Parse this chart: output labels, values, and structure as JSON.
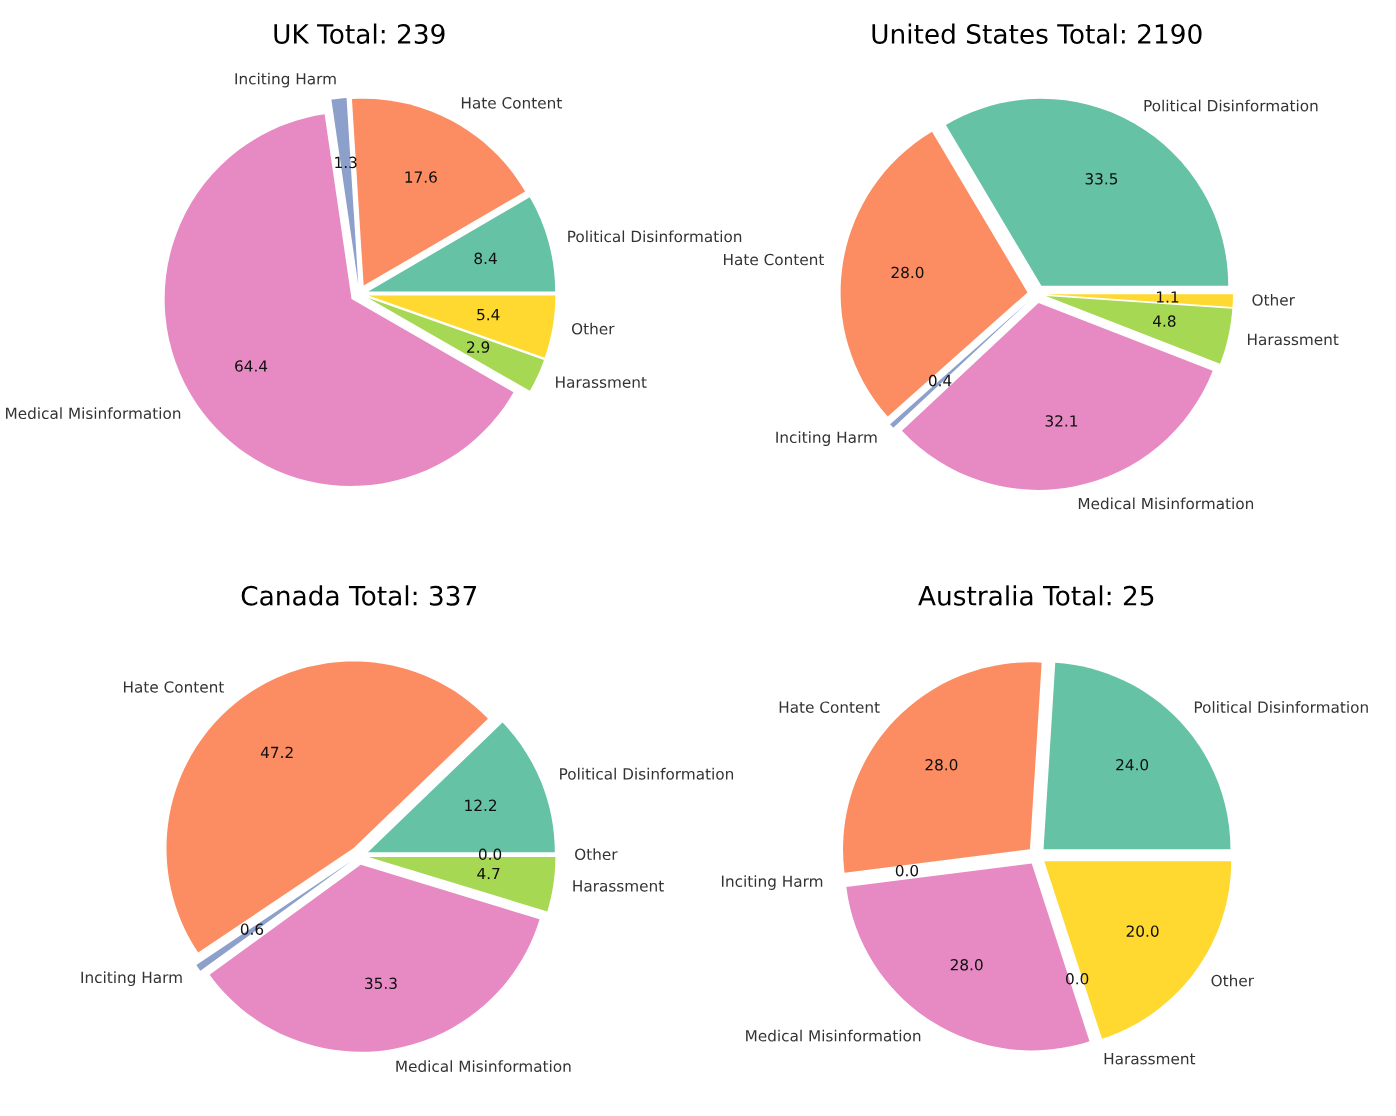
{
  "chart_data": [
    {
      "type": "pie",
      "title": "UK Total: 239",
      "categories": [
        "Political Disinformation",
        "Hate Content",
        "Inciting Harm",
        "Medical Misinformation",
        "Harassment",
        "Other"
      ],
      "values": [
        8.4,
        17.6,
        1.3,
        64.4,
        2.9,
        5.4
      ],
      "value_labels": [
        "8.4",
        "17.6",
        "1.3",
        "64.4",
        "2.9",
        "5.4"
      ],
      "colors": [
        "#66c2a5",
        "#fc8d62",
        "#8da0cb",
        "#e78ac3",
        "#a6d854",
        "#ffd92f"
      ]
    },
    {
      "type": "pie",
      "title": "United States Total: 2190",
      "categories": [
        "Political Disinformation",
        "Hate Content",
        "Inciting Harm",
        "Medical Misinformation",
        "Harassment",
        "Other"
      ],
      "values": [
        33.5,
        28.0,
        0.4,
        32.1,
        4.8,
        1.1
      ],
      "value_labels": [
        "33.5",
        "28.0",
        "0.4",
        "32.1",
        "4.8",
        "1.1"
      ],
      "colors": [
        "#66c2a5",
        "#fc8d62",
        "#8da0cb",
        "#e78ac3",
        "#a6d854",
        "#ffd92f"
      ]
    },
    {
      "type": "pie",
      "title": "Canada Total: 337",
      "categories": [
        "Political Disinformation",
        "Hate Content",
        "Inciting Harm",
        "Medical Misinformation",
        "Harassment",
        "Other"
      ],
      "values": [
        12.2,
        47.2,
        0.6,
        35.3,
        4.7,
        0.0
      ],
      "value_labels": [
        "12.2",
        "47.2",
        "0.6",
        "35.3",
        "4.7",
        "0.0"
      ],
      "colors": [
        "#66c2a5",
        "#fc8d62",
        "#8da0cb",
        "#e78ac3",
        "#a6d854",
        "#ffd92f"
      ]
    },
    {
      "type": "pie",
      "title": "Australia Total: 25",
      "categories": [
        "Political Disinformation",
        "Hate Content",
        "Inciting Harm",
        "Medical Misinformation",
        "Harassment",
        "Other"
      ],
      "values": [
        24.0,
        28.0,
        0.0,
        28.0,
        0.0,
        20.0
      ],
      "value_labels": [
        "24.0",
        "28.0",
        "0.0",
        "28.0",
        "0.0",
        "20.0"
      ],
      "colors": [
        "#66c2a5",
        "#fc8d62",
        "#8da0cb",
        "#e78ac3",
        "#a6d854",
        "#ffd92f"
      ]
    }
  ]
}
